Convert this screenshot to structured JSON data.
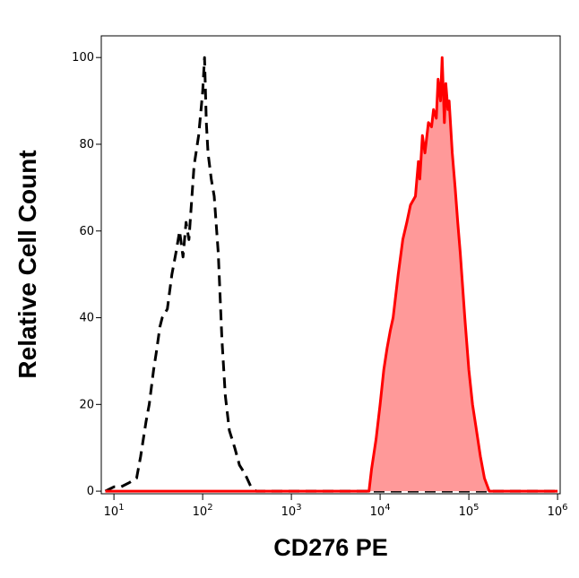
{
  "chart_data": {
    "type": "histogram-overlay",
    "x_label": "CD276 PE",
    "y_label": "Relative Cell Count",
    "xscale": "log",
    "xlim": [
      7.2,
      1070000
    ],
    "ylim": [
      -0.6,
      105
    ],
    "xticks": [
      {
        "value": 10,
        "label": "10",
        "sup": "1"
      },
      {
        "value": 100,
        "label": "10",
        "sup": "2"
      },
      {
        "value": 1000,
        "label": "10",
        "sup": "3"
      },
      {
        "value": 10000,
        "label": "10",
        "sup": "4"
      },
      {
        "value": 100000,
        "label": "10",
        "sup": "5"
      },
      {
        "value": 1000000,
        "label": "10",
        "sup": "6"
      }
    ],
    "yticks": [
      0,
      20,
      40,
      60,
      80,
      100
    ],
    "series": [
      {
        "color": "#000000",
        "line_style": "dashed",
        "x": [
          8,
          10,
          12,
          15,
          18,
          20,
          23,
          25,
          28,
          30,
          33,
          35,
          40,
          45,
          50,
          55,
          60,
          65,
          70,
          80,
          90,
          100,
          105,
          110,
          115,
          125,
          135,
          150,
          165,
          180,
          200,
          230,
          260,
          300,
          350,
          400,
          500,
          1000,
          10000,
          100000,
          1000000
        ],
        "values": [
          0,
          1,
          1,
          2,
          3,
          8,
          16,
          20,
          28,
          32,
          38,
          40,
          42,
          50,
          55,
          60,
          54,
          62,
          58,
          75,
          82,
          92,
          100,
          85,
          78,
          72,
          68,
          55,
          35,
          22,
          14,
          10,
          6,
          4,
          1,
          0,
          0,
          0,
          0,
          0,
          0
        ]
      },
      {
        "color": "#ff0000",
        "fill": "#ff9999",
        "line_style": "solid",
        "x": [
          8,
          100,
          1000,
          7500,
          8000,
          9000,
          10000,
          11000,
          12000,
          13000,
          14000,
          16000,
          18000,
          20000,
          22000,
          25000,
          27000,
          28000,
          30000,
          32000,
          35000,
          38000,
          40000,
          43000,
          45000,
          48000,
          50000,
          53000,
          55000,
          58000,
          60000,
          65000,
          70000,
          75000,
          80000,
          90000,
          100000,
          110000,
          120000,
          135000,
          150000,
          170000,
          200000,
          1000000
        ],
        "values": [
          0,
          0,
          0,
          0,
          5,
          12,
          20,
          28,
          33,
          37,
          40,
          50,
          58,
          62,
          66,
          68,
          76,
          72,
          82,
          78,
          85,
          84,
          88,
          86,
          95,
          90,
          100,
          85,
          94,
          88,
          90,
          78,
          70,
          62,
          55,
          40,
          28,
          20,
          15,
          8,
          3,
          0,
          0,
          0
        ]
      }
    ]
  }
}
